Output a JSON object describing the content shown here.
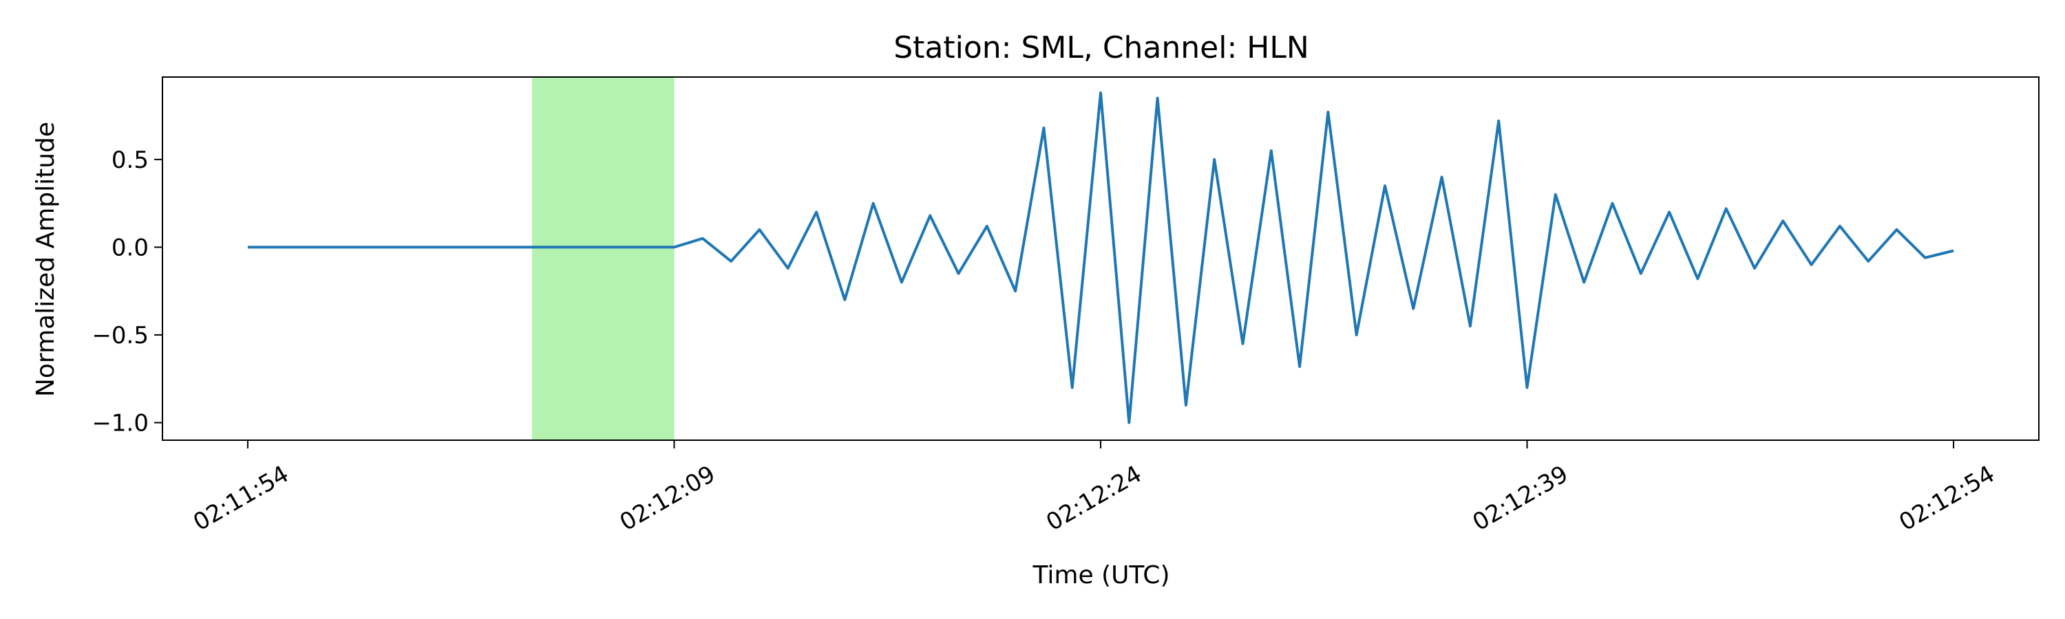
{
  "chart_data": {
    "type": "line",
    "title": "Station: SML, Channel: HLN",
    "xlabel": "Time (UTC)",
    "ylabel": "Normalized Amplitude",
    "x_unit": "time (UTC)",
    "xlim": [
      "02:11:51",
      "02:12:57"
    ],
    "ylim": [
      -1.1,
      0.97
    ],
    "x_ticks": [
      "02:11:54",
      "02:12:09",
      "02:12:24",
      "02:12:39",
      "02:12:54"
    ],
    "y_ticks": [
      -1.0,
      -0.5,
      0.0,
      0.5
    ],
    "y_tick_labels": [
      "−1.0",
      "−0.5",
      "0.0",
      "0.5"
    ],
    "grid": false,
    "legend": "none",
    "shaded_region": {
      "x_start": "02:12:04",
      "x_end": "02:12:09",
      "color": "#b3f2b0"
    },
    "series": [
      {
        "color": "#1f77b4",
        "x": [
          "02:11:54",
          "02:11:56",
          "02:11:58",
          "02:12:00",
          "02:12:02",
          "02:12:04",
          "02:12:06",
          "02:12:08",
          "02:12:09",
          "02:12:10",
          "02:12:11",
          "02:12:12",
          "02:12:13",
          "02:12:14",
          "02:12:15",
          "02:12:16",
          "02:12:17",
          "02:12:18",
          "02:12:19",
          "02:12:20",
          "02:12:21",
          "02:12:22",
          "02:12:23",
          "02:12:24",
          "02:12:25",
          "02:12:26",
          "02:12:27",
          "02:12:28",
          "02:12:29",
          "02:12:30",
          "02:12:31",
          "02:12:32",
          "02:12:33",
          "02:12:34",
          "02:12:35",
          "02:12:36",
          "02:12:37",
          "02:12:38",
          "02:12:39",
          "02:12:40",
          "02:12:41",
          "02:12:42",
          "02:12:43",
          "02:12:44",
          "02:12:45",
          "02:12:46",
          "02:12:47",
          "02:12:48",
          "02:12:49",
          "02:12:50",
          "02:12:51",
          "02:12:52",
          "02:12:53",
          "02:12:54"
        ],
        "y": [
          0.0,
          0.0,
          0.0,
          0.0,
          0.0,
          0.0,
          0.0,
          0.0,
          0.0,
          0.05,
          -0.08,
          0.1,
          -0.12,
          0.2,
          -0.3,
          0.25,
          -0.2,
          0.18,
          -0.15,
          0.12,
          -0.25,
          0.68,
          -0.8,
          0.88,
          -1.0,
          0.85,
          -0.9,
          0.5,
          -0.55,
          0.55,
          -0.68,
          0.77,
          -0.5,
          0.35,
          -0.35,
          0.4,
          -0.45,
          0.72,
          -0.8,
          0.3,
          -0.2,
          0.25,
          -0.15,
          0.2,
          -0.18,
          0.22,
          -0.12,
          0.15,
          -0.1,
          0.12,
          -0.08,
          0.1,
          -0.06,
          -0.02
        ]
      }
    ]
  }
}
